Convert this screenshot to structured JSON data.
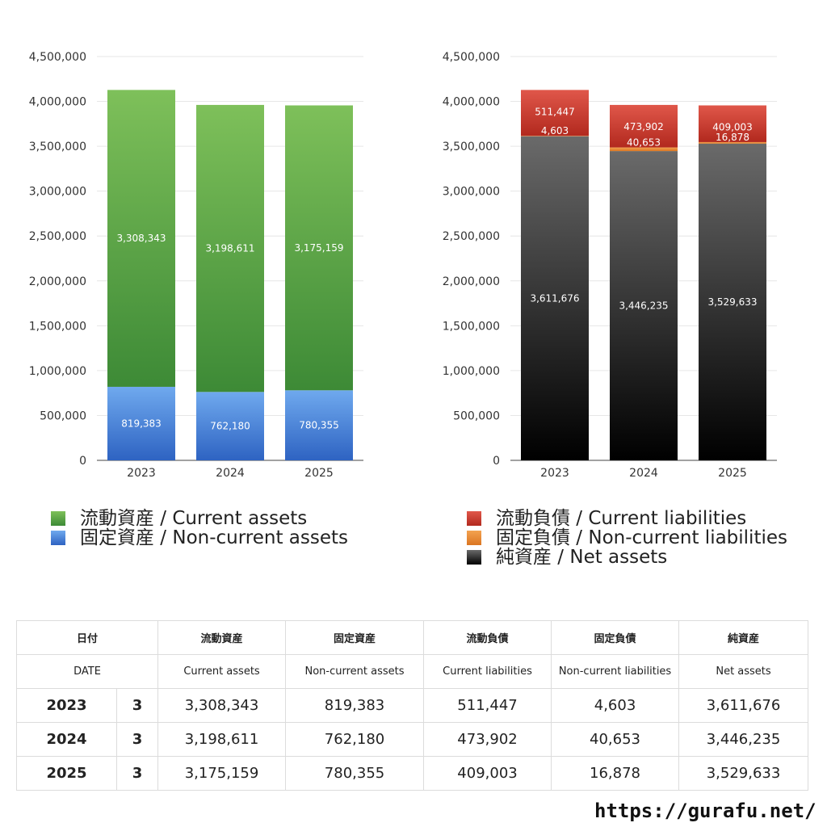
{
  "chart_data": [
    {
      "type": "bar",
      "stacked": true,
      "categories": [
        "2023",
        "2024",
        "2025"
      ],
      "ylim": [
        0,
        4500000
      ],
      "yticks": [
        "0",
        "500,000",
        "1,000,000",
        "1,500,000",
        "2,000,000",
        "2,500,000",
        "3,000,000",
        "3,500,000",
        "4,000,000",
        "4,500,000"
      ],
      "grid": true,
      "legend_position": "bottom",
      "series": [
        {
          "name": "固定資産 / Non-current assets",
          "values": [
            819383,
            762180,
            780355
          ],
          "labels": [
            "819,383",
            "762,180",
            "780,355"
          ],
          "color_top": "#6fa9ee",
          "color_bottom": "#2e63c2"
        },
        {
          "name": "流動資産 / Current assets",
          "values": [
            3308343,
            3198611,
            3175159
          ],
          "labels": [
            "3,308,343",
            "3,198,611",
            "3,175,159"
          ],
          "color_top": "#7ec05a",
          "color_bottom": "#3d8a36"
        }
      ]
    },
    {
      "type": "bar",
      "stacked": true,
      "categories": [
        "2023",
        "2024",
        "2025"
      ],
      "ylim": [
        0,
        4500000
      ],
      "yticks": [
        "0",
        "500,000",
        "1,000,000",
        "1,500,000",
        "2,000,000",
        "2,500,000",
        "3,000,000",
        "3,500,000",
        "4,000,000",
        "4,500,000"
      ],
      "grid": true,
      "legend_position": "bottom",
      "series": [
        {
          "name": "純資産 / Net assets",
          "values": [
            3611676,
            3446235,
            3529633
          ],
          "labels": [
            "3,611,676",
            "3,446,235",
            "3,529,633"
          ],
          "color_top": "#6a6a6a",
          "color_bottom": "#000000"
        },
        {
          "name": "固定負債 / Non-current liabilities",
          "values": [
            4603,
            40653,
            16878
          ],
          "labels": [
            "4,603",
            "40,653",
            "16,878"
          ],
          "color_top": "#f3a250",
          "color_bottom": "#db7622"
        },
        {
          "name": "流動負債 / Current liabilities",
          "values": [
            511447,
            473902,
            409003
          ],
          "labels": [
            "511,447",
            "473,902",
            "409,003"
          ],
          "color_top": "#e0574a",
          "color_bottom": "#b2291e"
        }
      ]
    }
  ],
  "legend_left": [
    "流動資産 / Current assets",
    "固定資産 / Non-current assets"
  ],
  "legend_right": [
    "流動負債 / Current liabilities",
    "固定負債 / Non-current liabilities",
    "純資産 / Net assets"
  ],
  "table": {
    "header_jp": [
      "日付",
      "流動資産",
      "固定資産",
      "流動負債",
      "固定負債",
      "純資産"
    ],
    "header_en": [
      "DATE",
      "Current assets",
      "Non-current assets",
      "Current liabilities",
      "Non-current liabilities",
      "Net assets"
    ],
    "rows": [
      {
        "year": "2023",
        "month": "3",
        "values": [
          "3,308,343",
          "819,383",
          "511,447",
          "4,603",
          "3,611,676"
        ]
      },
      {
        "year": "2024",
        "month": "3",
        "values": [
          "3,198,611",
          "762,180",
          "473,902",
          "40,653",
          "3,446,235"
        ]
      },
      {
        "year": "2025",
        "month": "3",
        "values": [
          "3,175,159",
          "780,355",
          "409,003",
          "16,878",
          "3,529,633"
        ]
      }
    ]
  },
  "site_url": "https://gurafu.net/"
}
